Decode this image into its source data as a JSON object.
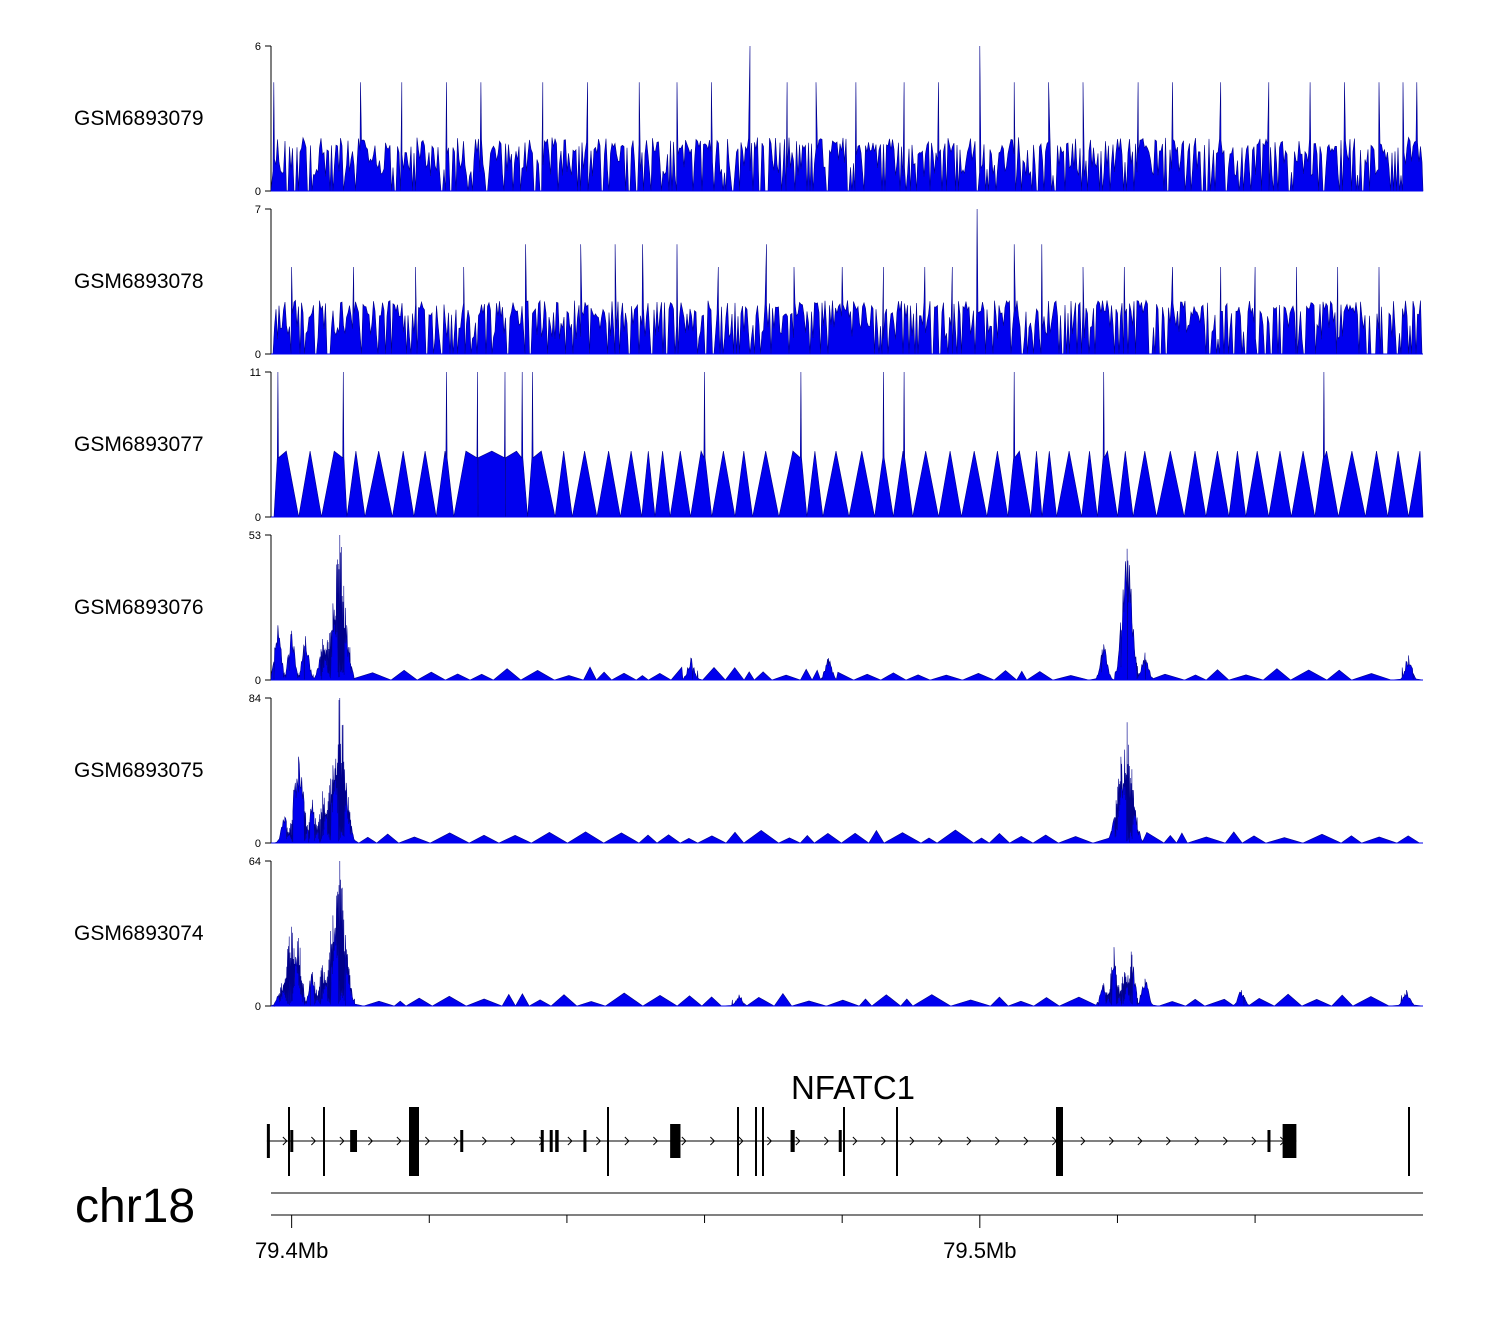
{
  "chart_data": {
    "type": "area",
    "region": {
      "chromosome": "chr18",
      "start_mb": 79.397,
      "end_mb": 79.5644
    },
    "colors": {
      "signal": "#0000ee",
      "outline": "#00008b",
      "gene": "#000000"
    },
    "tracks": [
      {
        "name": "GSM6893079",
        "ymax_label": "6",
        "ymin_label": "0",
        "ymax": 6,
        "style": "noisy",
        "peaks": [
          [
            79.3974,
            4.5
          ],
          [
            79.41,
            4.5
          ],
          [
            79.416,
            4.5
          ],
          [
            79.4225,
            4.5
          ],
          [
            79.4275,
            4.5
          ],
          [
            79.4365,
            4.5
          ],
          [
            79.443,
            4.5
          ],
          [
            79.4505,
            4.5
          ],
          [
            79.456,
            4.5
          ],
          [
            79.461,
            4.5
          ],
          [
            79.4666,
            6.0
          ],
          [
            79.472,
            4.5
          ],
          [
            79.4762,
            4.5
          ],
          [
            79.482,
            4.5
          ],
          [
            79.489,
            4.5
          ],
          [
            79.494,
            4.5
          ],
          [
            79.5,
            6.0
          ],
          [
            79.505,
            4.5
          ],
          [
            79.51,
            4.5
          ],
          [
            79.515,
            4.5
          ],
          [
            79.523,
            4.5
          ],
          [
            79.528,
            4.5
          ],
          [
            79.535,
            4.5
          ],
          [
            79.542,
            4.5
          ],
          [
            79.548,
            4.5
          ],
          [
            79.553,
            4.5
          ],
          [
            79.558,
            4.5
          ],
          [
            79.5615,
            4.5
          ],
          [
            79.5635,
            4.5
          ]
        ]
      },
      {
        "name": "GSM6893078",
        "ymax_label": "7",
        "ymin_label": "0",
        "ymax": 7,
        "style": "noisy",
        "peaks": [
          [
            79.4,
            4.2
          ],
          [
            79.409,
            4.2
          ],
          [
            79.418,
            4.2
          ],
          [
            79.425,
            4.2
          ],
          [
            79.434,
            5.3
          ],
          [
            79.442,
            5.3
          ],
          [
            79.447,
            5.3
          ],
          [
            79.451,
            5.3
          ],
          [
            79.456,
            5.3
          ],
          [
            79.462,
            4.2
          ],
          [
            79.469,
            5.3
          ],
          [
            79.473,
            4.2
          ],
          [
            79.48,
            4.2
          ],
          [
            79.486,
            4.2
          ],
          [
            79.492,
            4.2
          ],
          [
            79.496,
            4.2
          ],
          [
            79.4996,
            7.0
          ],
          [
            79.505,
            5.3
          ],
          [
            79.509,
            5.3
          ],
          [
            79.515,
            4.2
          ],
          [
            79.521,
            4.2
          ],
          [
            79.528,
            4.2
          ],
          [
            79.535,
            4.2
          ],
          [
            79.54,
            4.2
          ],
          [
            79.546,
            4.2
          ],
          [
            79.552,
            4.2
          ],
          [
            79.558,
            4.2
          ]
        ]
      },
      {
        "name": "GSM6893077",
        "ymax_label": "11",
        "ymin_label": "0",
        "ymax": 11,
        "style": "sparse",
        "peaks": [
          [
            79.398,
            11.0
          ],
          [
            79.4075,
            11.0
          ],
          [
            79.4225,
            11.0
          ],
          [
            79.427,
            11.0
          ],
          [
            79.431,
            11.0
          ],
          [
            79.4335,
            11.0
          ],
          [
            79.435,
            11.0
          ],
          [
            79.46,
            11.0
          ],
          [
            79.474,
            11.0
          ],
          [
            79.486,
            11.0
          ],
          [
            79.489,
            11.0
          ],
          [
            79.505,
            11.0
          ],
          [
            79.55,
            11.0
          ],
          [
            79.518,
            11.0
          ]
        ]
      },
      {
        "name": "GSM6893076",
        "ymax_label": "53",
        "ymin_label": "0",
        "ymax": 53,
        "style": "peaky",
        "peaks": [
          [
            79.398,
            20
          ],
          [
            79.4,
            18
          ],
          [
            79.402,
            16
          ],
          [
            79.4045,
            15
          ],
          [
            79.406,
            28
          ],
          [
            79.407,
            53
          ],
          [
            79.408,
            20
          ],
          [
            79.458,
            8
          ],
          [
            79.478,
            8
          ],
          [
            79.518,
            13
          ],
          [
            79.5214,
            48
          ],
          [
            79.524,
            10
          ],
          [
            79.5623,
            9
          ]
        ]
      },
      {
        "name": "GSM6893075",
        "ymax_label": "84",
        "ymin_label": "0",
        "ymax": 84,
        "style": "peaky",
        "peaks": [
          [
            79.399,
            15
          ],
          [
            79.401,
            50
          ],
          [
            79.403,
            25
          ],
          [
            79.4045,
            30
          ],
          [
            79.406,
            45
          ],
          [
            79.407,
            84
          ],
          [
            79.408,
            30
          ],
          [
            79.5205,
            50
          ],
          [
            79.5214,
            70
          ],
          [
            79.5225,
            20
          ]
        ]
      },
      {
        "name": "GSM6893074",
        "ymax_label": "64",
        "ymin_label": "0",
        "ymax": 64,
        "style": "peaky",
        "peaks": [
          [
            79.3985,
            10
          ],
          [
            79.4,
            35
          ],
          [
            79.401,
            30
          ],
          [
            79.403,
            15
          ],
          [
            79.4045,
            18
          ],
          [
            79.406,
            40
          ],
          [
            79.407,
            64
          ],
          [
            79.408,
            25
          ],
          [
            79.465,
            5
          ],
          [
            79.518,
            10
          ],
          [
            79.5195,
            26
          ],
          [
            79.521,
            15
          ],
          [
            79.522,
            24
          ],
          [
            79.524,
            12
          ],
          [
            79.538,
            7
          ],
          [
            79.562,
            7
          ]
        ]
      }
    ],
    "gene": {
      "name": "NFATC1",
      "strand": "+",
      "exons": [
        [
          79.3964,
          79.3968,
          "utr"
        ],
        [
          79.3998,
          79.3999,
          "cds"
        ],
        [
          79.4085,
          79.4095,
          "cds"
        ],
        [
          79.4245,
          79.4248,
          "cds"
        ],
        [
          79.4362,
          79.4366,
          "cds"
        ],
        [
          79.4375,
          79.4378,
          "cds"
        ],
        [
          79.4383,
          79.4388,
          "cds"
        ],
        [
          79.4424,
          79.4425,
          "cds"
        ],
        [
          79.455,
          79.4565,
          "utr"
        ],
        [
          79.4725,
          79.4731,
          "cds"
        ],
        [
          79.4795,
          79.4798,
          "cds"
        ],
        [
          79.5418,
          79.542,
          "cds"
        ],
        [
          79.544,
          79.546,
          "utr"
        ]
      ]
    },
    "axis": {
      "chromosome_label": "chr18",
      "major_ticks": [
        79.4,
        79.5
      ],
      "major_tick_labels": [
        "79.4Mb",
        "79.5Mb"
      ],
      "minor_ticks": [
        79.42,
        79.44,
        79.46,
        79.48,
        79.52,
        79.54
      ]
    }
  }
}
